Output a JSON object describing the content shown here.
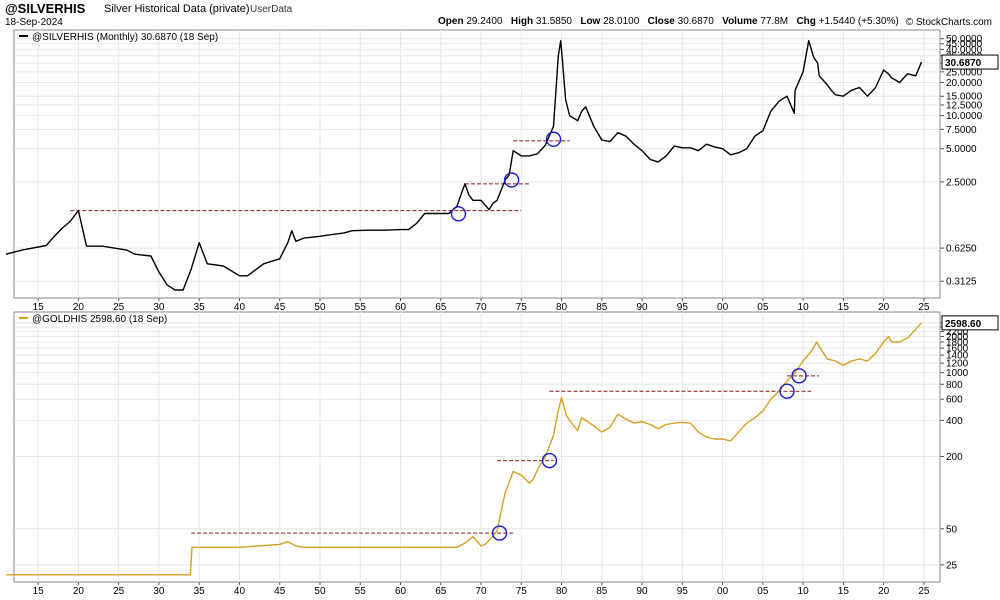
{
  "header": {
    "symbol": "@SILVERHIS",
    "description": "Silver Historical Data (private)",
    "userdata": "UserData",
    "date": "18-Sep-2024",
    "brand": "© StockCharts.com",
    "open_label": "Open",
    "open": "29.2400",
    "high_label": "High",
    "high": "31.5850",
    "low_label": "Low",
    "low": "28.0100",
    "close_label": "Close",
    "close": "30.6870",
    "volume_label": "Volume",
    "volume": "77.8M",
    "chg_label": "Chg",
    "chg": "+1.5440 (+5.30%)"
  },
  "colors": {
    "silver": "#000000",
    "gold": "#d4a024",
    "marker": "#8b1a1a",
    "circle": "#1a1acc",
    "grid": "#e6e6e6"
  },
  "chart_data": [
    {
      "type": "line",
      "legend": "@SILVERHIS (Monthly) 30.6870 (18 Sep)",
      "last_value_label": "30.6870",
      "scale": "log",
      "ylim": [
        0.22,
        60
      ],
      "xlim": [
        1912,
        2027
      ],
      "y_tick_labels": [
        "0.3125",
        "0.6250",
        "2.5000",
        "5.0000",
        "7.5000",
        "10.0000",
        "12.5000",
        "15.0000",
        "20.0000",
        "25.0000",
        "30.0000",
        "35.0000",
        "40.0000",
        "45.0000",
        "50.0000"
      ],
      "y_tick_values": [
        0.3125,
        0.625,
        2.5,
        5,
        7.5,
        10,
        12.5,
        15,
        20,
        25,
        30,
        35,
        40,
        45,
        50
      ],
      "x": [
        1911,
        1913,
        1916,
        1917,
        1918,
        1919,
        1920,
        1920.3,
        1921,
        1923,
        1926,
        1927,
        1929,
        1930,
        1931,
        1932,
        1933,
        1934,
        1935,
        1936,
        1938,
        1940,
        1941,
        1943,
        1945,
        1946,
        1946.5,
        1947,
        1948,
        1950,
        1951,
        1953,
        1954,
        1956,
        1958,
        1960,
        1961,
        1962,
        1963,
        1964,
        1966,
        1967,
        1968,
        1968.5,
        1969,
        1970,
        1971,
        1971.5,
        1972,
        1973,
        1973.5,
        1974,
        1975,
        1976,
        1977,
        1978,
        1979,
        1979.6,
        1979.9,
        1980.1,
        1980.5,
        1981,
        1982,
        1982.5,
        1983,
        1984,
        1985,
        1986,
        1987,
        1988,
        1989,
        1990,
        1991,
        1992,
        1993,
        1994,
        1995,
        1996,
        1997,
        1998,
        1999,
        2000,
        2001,
        2002,
        2003,
        2004,
        2005,
        2006,
        2007,
        2008,
        2008.9,
        2009,
        2010,
        2010.7,
        2011.3,
        2011.8,
        2012,
        2013,
        2013.5,
        2014,
        2015,
        2016,
        2017,
        2018,
        2019,
        2020,
        2020.6,
        2021,
        2022,
        2022.5,
        2023,
        2024,
        2024.7
      ],
      "y": [
        0.55,
        0.6,
        0.66,
        0.8,
        0.95,
        1.1,
        1.37,
        1.1,
        0.65,
        0.65,
        0.6,
        0.55,
        0.53,
        0.38,
        0.29,
        0.26,
        0.26,
        0.4,
        0.7,
        0.45,
        0.43,
        0.35,
        0.35,
        0.45,
        0.5,
        0.7,
        0.9,
        0.72,
        0.77,
        0.8,
        0.82,
        0.86,
        0.9,
        0.91,
        0.91,
        0.92,
        0.92,
        1.05,
        1.29,
        1.29,
        1.29,
        1.5,
        2.4,
        1.9,
        1.7,
        1.7,
        1.4,
        1.6,
        1.7,
        2.6,
        2.9,
        4.8,
        4.3,
        4.3,
        4.5,
        5.4,
        8,
        35,
        48,
        32,
        14,
        10,
        9,
        11,
        12,
        8,
        6,
        5.8,
        7,
        6.5,
        5.5,
        4.8,
        4,
        3.8,
        4.3,
        5.3,
        5.1,
        5.1,
        4.8,
        5.5,
        5.2,
        5,
        4.4,
        4.6,
        5,
        6.5,
        7.3,
        11,
        13.5,
        15,
        10.5,
        17,
        25,
        48,
        34,
        30,
        23,
        19,
        17,
        15.5,
        15,
        17,
        18,
        15,
        18,
        26,
        24,
        22,
        20,
        22,
        24,
        23,
        30.69
      ]
    },
    {
      "type": "line",
      "legend": "@GOLDHIS 2598.60 (18 Sep)",
      "last_value_label": "2598.60",
      "scale": "log",
      "ylim": [
        18,
        3200
      ],
      "xlim": [
        1912,
        2027
      ],
      "y_tick_labels": [
        "25",
        "50",
        "200",
        "400",
        "600",
        "800",
        "1000",
        "1200",
        "1400",
        "1600",
        "1800",
        "2000",
        "2200",
        "2400",
        "2600"
      ],
      "y_tick_values": [
        25,
        50,
        200,
        400,
        600,
        800,
        1000,
        1200,
        1400,
        1600,
        1800,
        2000,
        2200,
        2400,
        2600
      ],
      "x": [
        1911,
        1920,
        1933.9,
        1934.1,
        1935,
        1940,
        1945,
        1946,
        1947,
        1948,
        1950,
        1955,
        1960,
        1965,
        1967,
        1968,
        1969,
        1970,
        1970.5,
        1971,
        1972,
        1972.5,
        1973,
        1974,
        1975,
        1976,
        1976.5,
        1977,
        1978,
        1979,
        1979.5,
        1980,
        1980.3,
        1980.6,
        1981,
        1982,
        1982.5,
        1983,
        1984,
        1985,
        1986,
        1987,
        1988,
        1989,
        1990,
        1991,
        1992,
        1993,
        1994,
        1995,
        1996,
        1997,
        1998,
        1999,
        2000,
        2001,
        2002,
        2003,
        2004,
        2005,
        2006,
        2007,
        2008,
        2009,
        2010,
        2011,
        2011.7,
        2012,
        2013,
        2014,
        2015,
        2016,
        2017,
        2018,
        2019,
        2020,
        2020.6,
        2021,
        2022,
        2023,
        2024,
        2024.7
      ],
      "y": [
        20.67,
        20.67,
        20.67,
        35,
        35,
        35,
        37,
        39,
        36,
        35,
        35,
        35,
        35,
        35,
        35,
        38,
        43,
        36,
        37,
        40,
        48,
        70,
        100,
        150,
        140,
        120,
        130,
        155,
        200,
        300,
        450,
        620,
        520,
        440,
        400,
        330,
        420,
        400,
        360,
        320,
        350,
        450,
        410,
        380,
        390,
        370,
        340,
        370,
        380,
        385,
        380,
        320,
        290,
        280,
        280,
        270,
        320,
        380,
        420,
        480,
        600,
        700,
        850,
        1000,
        1250,
        1500,
        1800,
        1650,
        1300,
        1250,
        1150,
        1250,
        1300,
        1250,
        1450,
        1800,
        2000,
        1800,
        1800,
        1950,
        2300,
        2598.6
      ]
    }
  ],
  "x_axis": {
    "tick_years": [
      1915,
      1920,
      1925,
      1930,
      1935,
      1940,
      1945,
      1950,
      1955,
      1960,
      1965,
      1970,
      1975,
      1980,
      1985,
      1990,
      1995,
      2000,
      2005,
      2010,
      2015,
      2020,
      2025
    ],
    "tick_labels": [
      "15",
      "20",
      "25",
      "30",
      "35",
      "40",
      "45",
      "50",
      "55",
      "60",
      "65",
      "70",
      "75",
      "80",
      "85",
      "90",
      "95",
      "00",
      "05",
      "10",
      "15",
      "20",
      "25"
    ]
  },
  "annotations": {
    "silver_lines": [
      {
        "x1": 1919,
        "x2": 1975,
        "y": 1.37
      },
      {
        "x1": 1968,
        "x2": 1976,
        "y": 2.4
      },
      {
        "x1": 1974,
        "x2": 1981,
        "y": 5.9
      }
    ],
    "silver_circles": [
      {
        "x": 1967.2,
        "y": 1.28
      },
      {
        "x": 1973.8,
        "y": 2.6
      },
      {
        "x": 1979.0,
        "y": 6.1
      }
    ],
    "gold_lines": [
      {
        "x1": 1934,
        "x2": 1974,
        "y": 46
      },
      {
        "x1": 1972,
        "x2": 1979,
        "y": 185
      },
      {
        "x1": 1978.5,
        "x2": 2011,
        "y": 700
      },
      {
        "x1": 2008,
        "x2": 2012,
        "y": 940
      }
    ],
    "gold_circles": [
      {
        "x": 1972.3,
        "y": 46
      },
      {
        "x": 1978.5,
        "y": 185
      },
      {
        "x": 2008.0,
        "y": 700
      },
      {
        "x": 2009.5,
        "y": 940
      }
    ]
  }
}
